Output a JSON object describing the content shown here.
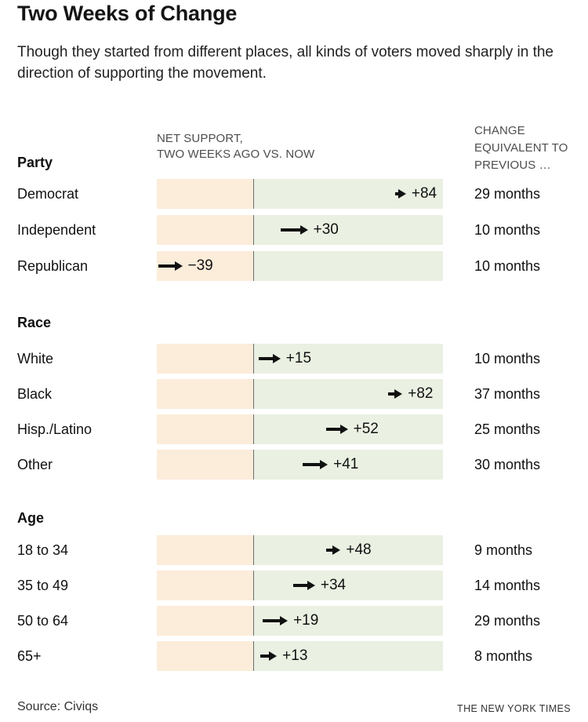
{
  "title": "Two Weeks of Change",
  "subtitle": "Though they started from different places, all kinds of voters moved sharply in the direction of supporting the movement.",
  "column_headers": {
    "bar_line1": "NET SUPPORT,",
    "bar_line2": "TWO WEEKS AGO VS. NOW",
    "months_line1": "CHANGE",
    "months_line2": "EQUIVALENT TO",
    "months_line3": "PREVIOUS …"
  },
  "footer": {
    "source": "Source: Civiqs",
    "credit": "THE NEW YORK TIMES"
  },
  "colors": {
    "negative_area": "#fcecda",
    "positive_area": "#eaf0e2",
    "zero_line": "#6e6e6e",
    "arrow": "#111111",
    "header_text": "#4d4d4d"
  },
  "chart_data": {
    "type": "bar",
    "subtype": "arrow-change",
    "title": "Two Weeks of Change",
    "xlabel": "Net support, two weeks ago vs. now (percentage points)",
    "axis": {
      "min": -53,
      "max": 104,
      "zero": 0,
      "gridlines": false
    },
    "legend": null,
    "sections": [
      {
        "label": "Party",
        "rows": [
          {
            "label": "Democrat",
            "from": 78,
            "to": 84,
            "value_label": "+84",
            "months": 29,
            "months_label": "29 months"
          },
          {
            "label": "Independent",
            "from": 15,
            "to": 30,
            "value_label": "+30",
            "months": 10,
            "months_label": "10 months"
          },
          {
            "label": "Republican",
            "from": -52,
            "to": -39,
            "value_label": "−39",
            "months": 10,
            "months_label": "10 months"
          }
        ]
      },
      {
        "label": "Race",
        "rows": [
          {
            "label": "White",
            "from": 3,
            "to": 15,
            "value_label": "+15",
            "months": 10,
            "months_label": "10 months"
          },
          {
            "label": "Black",
            "from": 74,
            "to": 82,
            "value_label": "+82",
            "months": 37,
            "months_label": "37 months"
          },
          {
            "label": "Hisp./Latino",
            "from": 40,
            "to": 52,
            "value_label": "+52",
            "months": 25,
            "months_label": "25 months"
          },
          {
            "label": "Other",
            "from": 27,
            "to": 41,
            "value_label": "+41",
            "months": 30,
            "months_label": "30 months"
          }
        ]
      },
      {
        "label": "Age",
        "rows": [
          {
            "label": "18 to 34",
            "from": 40,
            "to": 48,
            "value_label": "+48",
            "months": 9,
            "months_label": "9 months"
          },
          {
            "label": "35 to 49",
            "from": 22,
            "to": 34,
            "value_label": "+34",
            "months": 14,
            "months_label": "14 months"
          },
          {
            "label": "50 to 64",
            "from": 5,
            "to": 19,
            "value_label": "+19",
            "months": 29,
            "months_label": "29 months"
          },
          {
            "label": "65+",
            "from": 4,
            "to": 13,
            "value_label": "+13",
            "months": 8,
            "months_label": "8 months"
          }
        ]
      }
    ]
  }
}
